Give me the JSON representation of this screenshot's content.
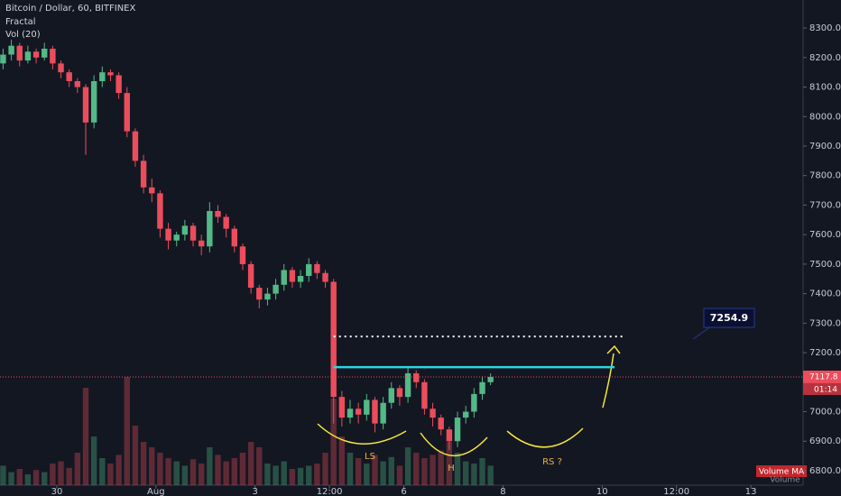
{
  "chart_data": {
    "type": "candlestick",
    "title": "Bitcoin / Dollar, 60, BITFINEX",
    "indicators": [
      "Fractal",
      "Vol (20)"
    ],
    "x": [
      -26,
      -22,
      -18,
      -14,
      -10,
      -6,
      -2,
      2,
      6,
      10,
      14,
      18,
      22,
      26,
      30,
      34,
      38,
      42,
      46,
      50,
      54,
      58,
      62,
      66,
      70,
      74,
      78,
      82,
      86,
      90,
      94,
      98,
      102,
      106,
      110,
      114,
      118,
      122,
      126,
      130,
      134,
      138,
      142,
      146,
      150,
      154,
      158,
      162,
      166,
      170,
      174,
      178,
      182,
      186,
      190,
      194,
      198,
      202,
      206,
      210
    ],
    "open": [
      8180,
      8210,
      8240,
      8190,
      8220,
      8200,
      8230,
      8180,
      8150,
      8120,
      8100,
      7980,
      8120,
      8150,
      8140,
      8080,
      7950,
      7850,
      7760,
      7740,
      7620,
      7580,
      7600,
      7630,
      7580,
      7560,
      7680,
      7660,
      7620,
      7560,
      7500,
      7420,
      7380,
      7400,
      7430,
      7480,
      7440,
      7460,
      7500,
      7470,
      7440,
      7050,
      6980,
      7010,
      6990,
      7040,
      6960,
      7030,
      7080,
      7050,
      7130,
      7100,
      7010,
      6980,
      6940,
      6900,
      6980,
      7000,
      7060,
      7100
    ],
    "high": [
      8230,
      8260,
      8250,
      8240,
      8230,
      8250,
      8240,
      8190,
      8160,
      8130,
      8110,
      8140,
      8170,
      8160,
      8150,
      8100,
      7960,
      7870,
      7790,
      7750,
      7640,
      7610,
      7650,
      7640,
      7600,
      7710,
      7700,
      7670,
      7630,
      7570,
      7510,
      7430,
      7420,
      7450,
      7500,
      7490,
      7480,
      7520,
      7510,
      7480,
      7450,
      7070,
      7040,
      7030,
      7060,
      7050,
      7050,
      7100,
      7090,
      7150,
      7140,
      7110,
      7030,
      6990,
      6950,
      7000,
      7020,
      7080,
      7120,
      7130
    ],
    "low": [
      8160,
      8190,
      8170,
      8180,
      8180,
      8190,
      8160,
      8130,
      8100,
      8080,
      7870,
      7960,
      8100,
      8120,
      8060,
      7930,
      7830,
      7740,
      7710,
      7590,
      7550,
      7560,
      7580,
      7560,
      7530,
      7540,
      7640,
      7590,
      7540,
      7480,
      7400,
      7350,
      7360,
      7380,
      7410,
      7420,
      7420,
      7440,
      7450,
      7420,
      6960,
      6950,
      6960,
      6960,
      6970,
      6930,
      6940,
      7010,
      7020,
      7030,
      7080,
      6990,
      6950,
      6920,
      6870,
      6880,
      6960,
      6980,
      7040,
      7090
    ],
    "close": [
      8210,
      8240,
      8190,
      8220,
      8200,
      8230,
      8180,
      8150,
      8120,
      8100,
      7980,
      8120,
      8150,
      8140,
      8080,
      7950,
      7850,
      7760,
      7740,
      7620,
      7580,
      7600,
      7630,
      7580,
      7560,
      7680,
      7660,
      7620,
      7560,
      7500,
      7420,
      7380,
      7400,
      7430,
      7480,
      7440,
      7460,
      7500,
      7470,
      7440,
      7050,
      6980,
      7010,
      6990,
      7040,
      6960,
      7030,
      7080,
      7050,
      7130,
      7100,
      7010,
      6980,
      6940,
      6900,
      6980,
      7000,
      7060,
      7100,
      7118
    ],
    "volume": [
      18,
      12,
      15,
      10,
      14,
      12,
      20,
      22,
      16,
      30,
      90,
      45,
      25,
      20,
      28,
      100,
      55,
      40,
      35,
      30,
      25,
      22,
      18,
      24,
      20,
      35,
      28,
      22,
      25,
      30,
      40,
      35,
      20,
      18,
      22,
      15,
      16,
      18,
      20,
      30,
      80,
      45,
      30,
      25,
      20,
      28,
      22,
      26,
      18,
      35,
      30,
      25,
      28,
      32,
      40,
      30,
      22,
      20,
      25,
      18
    ],
    "volume_labels": [
      "Volume MA",
      "Volume"
    ],
    "colors": {
      "up": "#53b987",
      "down": "#eb4d5c",
      "level": "#ffffff",
      "neckline": "#26d7e0",
      "last": "#eb4d5c"
    },
    "xlim": [
      -27.5,
      361.3
    ],
    "xticks": [
      {
        "value": 0,
        "label": "30"
      },
      {
        "value": 48,
        "label": "Aug"
      },
      {
        "value": 96,
        "label": "3"
      },
      {
        "value": 132,
        "label": "12:00"
      },
      {
        "value": 168,
        "label": "6"
      },
      {
        "value": 216,
        "label": "8"
      },
      {
        "value": 264,
        "label": "10"
      },
      {
        "value": 300,
        "label": "12:00"
      },
      {
        "value": 336,
        "label": "13"
      }
    ],
    "ylim": [
      6751,
      8395
    ],
    "yticks": [
      {
        "value": 6800,
        "label": "6800.0"
      },
      {
        "value": 6900,
        "label": "6900.0"
      },
      {
        "value": 7000,
        "label": "7000.0"
      },
      {
        "value": 7100,
        "label": "7100.0"
      },
      {
        "value": 7200,
        "label": "7200.0"
      },
      {
        "value": 7300,
        "label": "7300.0"
      },
      {
        "value": 7400,
        "label": "7400.0"
      },
      {
        "value": 7500,
        "label": "7500.0"
      },
      {
        "value": 7600,
        "label": "7600.0"
      },
      {
        "value": 7700,
        "label": "7700.0"
      },
      {
        "value": 7800,
        "label": "7800.0"
      },
      {
        "value": 7900,
        "label": "7900.0"
      },
      {
        "value": 8000,
        "label": "8000.0"
      },
      {
        "value": 8100,
        "label": "8100.0"
      },
      {
        "value": 8200,
        "label": "8200.0"
      },
      {
        "value": 8300,
        "label": "8300.0"
      }
    ],
    "level_label": 7254.9,
    "level_x": [
      134,
      274
    ],
    "neckline": 7151,
    "neckline_x": [
      134,
      270
    ],
    "last_price": 7117.8,
    "countdown": "01:14",
    "annotations": [
      "LS",
      "H",
      "RS ?"
    ]
  }
}
